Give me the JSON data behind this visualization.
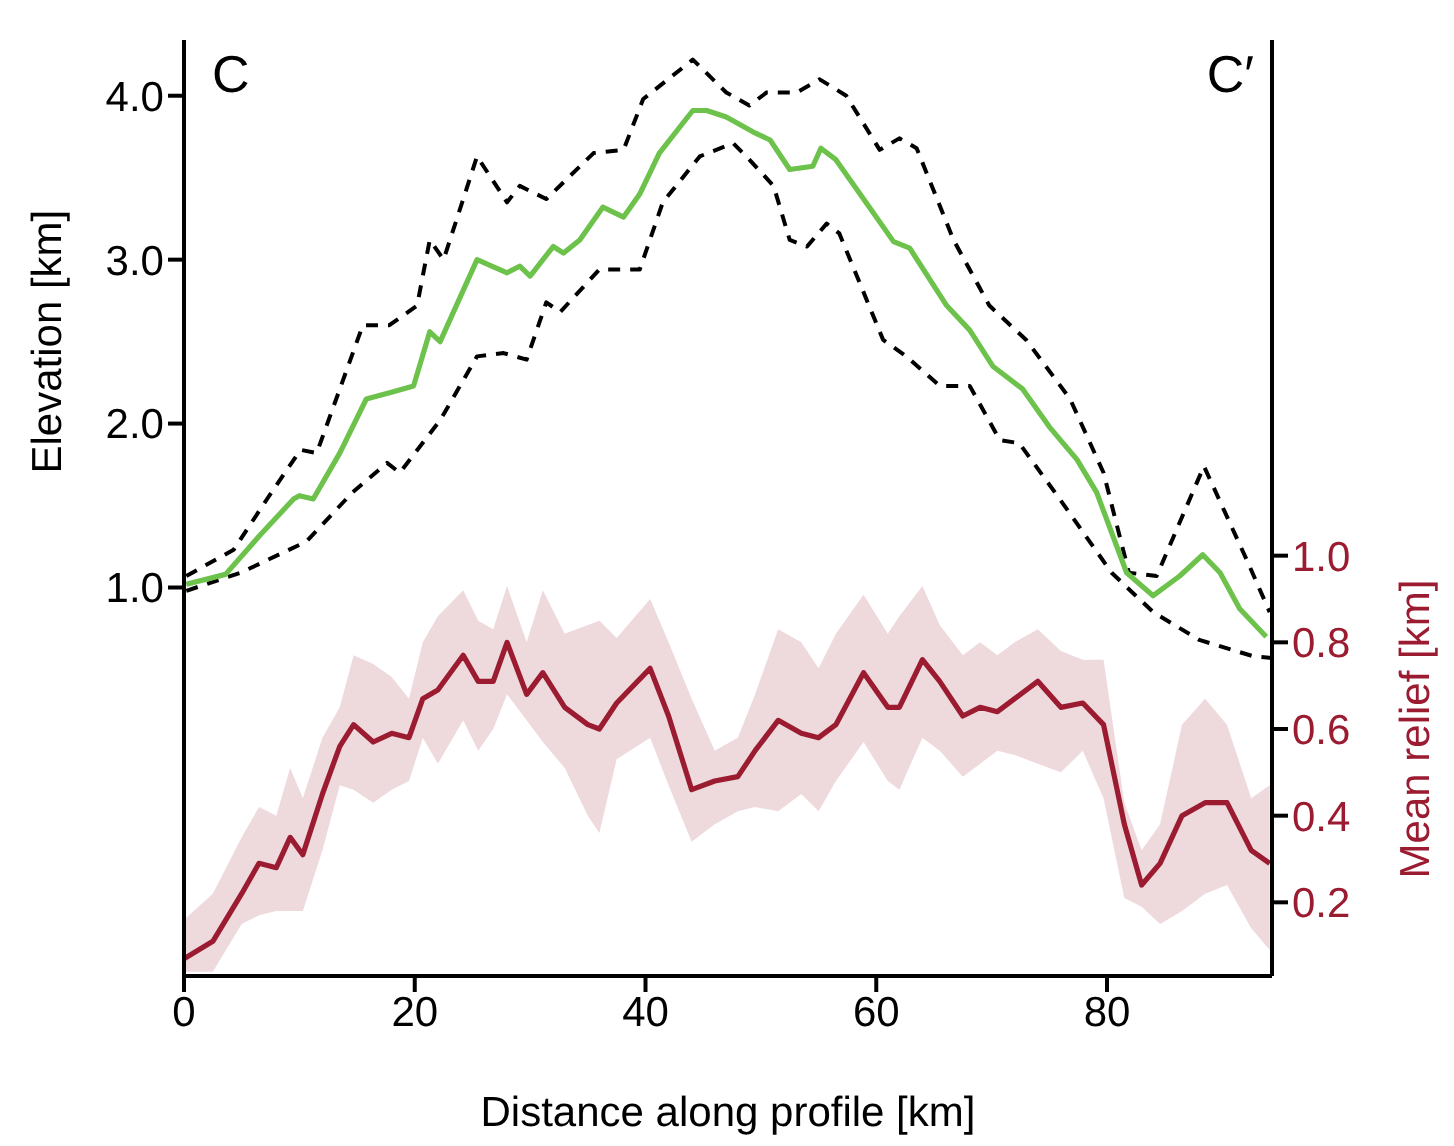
{
  "chart_data": {
    "type": "line",
    "xlabel": "Distance along profile [km]",
    "ylabel": "Elevation [km]",
    "y2label": "Mean relief [km]",
    "annotations": [
      "C",
      "C′"
    ],
    "xlim": [
      0,
      94.3
    ],
    "xticks": [
      0,
      20,
      40,
      60,
      80
    ],
    "ylim": [
      -1.37,
      4.34
    ],
    "yticks": [
      {
        "value": 1,
        "label": "1.0"
      },
      {
        "value": 2,
        "label": "2.0"
      },
      {
        "value": 3,
        "label": "3.0"
      },
      {
        "value": 4,
        "label": "4.0"
      }
    ],
    "y2lim": [
      0.03,
      2.19
    ],
    "y2ticks": [
      0.2,
      0.4,
      0.6,
      0.8,
      {
        "value": 1,
        "label": "1.0"
      }
    ],
    "series": [
      {
        "color": "#000000",
        "line_style": "dashed",
        "x": [
          0.2,
          4.3,
          7.2,
          10.1,
          11.5,
          15.5,
          17.8,
          20.2,
          21.3,
          22.5,
          25.4,
          28,
          29.1,
          31.4,
          35.5,
          38.1,
          39.8,
          44.1,
          47,
          49,
          50.5,
          53.1,
          55.1,
          57.4,
          60.3,
          62,
          63.5,
          66.7,
          69.8,
          73,
          76.8,
          79.7,
          81.9,
          84.3,
          88.4,
          92.1,
          94.1
        ],
        "values": [
          1.07,
          1.23,
          1.54,
          1.84,
          1.82,
          2.6,
          2.6,
          2.72,
          3.12,
          3.0,
          3.63,
          3.35,
          3.45,
          3.37,
          3.65,
          3.67,
          3.98,
          4.22,
          4.02,
          3.94,
          4.02,
          4.02,
          4.1,
          4.0,
          3.67,
          3.74,
          3.68,
          3.12,
          2.72,
          2.51,
          2.15,
          1.7,
          1.09,
          1.07,
          1.74,
          1.17,
          0.85
        ]
      },
      {
        "color": "#000000",
        "line_style": "dashed",
        "x": [
          0.2,
          4.9,
          10.6,
          14.6,
          17.6,
          18.7,
          22.2,
          25.4,
          27.7,
          29.7,
          31.4,
          32.6,
          36,
          39.5,
          41.5,
          44.7,
          47.6,
          49,
          51.1,
          52.5,
          54,
          55.7,
          56.8,
          60.6,
          62.6,
          65.5,
          68.1,
          70.7,
          72.4,
          75.9,
          80.4,
          84,
          88,
          92.7,
          94.3
        ],
        "values": [
          0.98,
          1.09,
          1.28,
          1.58,
          1.76,
          1.7,
          2.02,
          2.41,
          2.43,
          2.39,
          2.74,
          2.68,
          2.94,
          2.94,
          3.35,
          3.63,
          3.71,
          3.61,
          3.45,
          3.12,
          3.08,
          3.22,
          3.16,
          2.51,
          2.41,
          2.23,
          2.23,
          1.9,
          1.88,
          1.54,
          1.09,
          0.85,
          0.68,
          0.58,
          0.57
        ]
      },
      {
        "color": "#6cc24a",
        "line_style": "solid",
        "x": [
          0.2,
          3.6,
          6.6,
          9.5,
          10,
          11.2,
          13.5,
          15.8,
          17.9,
          19.9,
          21.3,
          22.2,
          25.4,
          28,
          29.1,
          30,
          32,
          32.9,
          34.3,
          36.3,
          38.1,
          39.5,
          41.2,
          44.1,
          45.3,
          47,
          49.3,
          50.8,
          52.5,
          54.5,
          55.2,
          56.5,
          58.9,
          61.5,
          62.9,
          66.1,
          68.1,
          70.1,
          72.7,
          75,
          77.4,
          79.1,
          81.7,
          84,
          86.3,
          88.3,
          89.8,
          91.5,
          93.8
        ],
        "values": [
          1.02,
          1.08,
          1.32,
          1.54,
          1.56,
          1.54,
          1.82,
          2.15,
          2.19,
          2.23,
          2.56,
          2.5,
          3.0,
          2.92,
          2.96,
          2.9,
          3.08,
          3.04,
          3.12,
          3.32,
          3.26,
          3.4,
          3.65,
          3.91,
          3.91,
          3.87,
          3.78,
          3.73,
          3.55,
          3.57,
          3.68,
          3.61,
          3.37,
          3.11,
          3.07,
          2.72,
          2.57,
          2.35,
          2.21,
          1.98,
          1.78,
          1.58,
          1.09,
          0.95,
          1.07,
          1.2,
          1.09,
          0.87,
          0.7
        ]
      },
      {
        "color": "#9b1b30",
        "line_style": "solid",
        "axis": "y2",
        "x": [
          0,
          2.5,
          5,
          6.5,
          8,
          9.2,
          10.3,
          12,
          13.5,
          14.7,
          16.4,
          18,
          19.5,
          20.7,
          22,
          24.2,
          25.5,
          26.8,
          28,
          29.7,
          31.1,
          33,
          35,
          36,
          37.5,
          40.4,
          42,
          44,
          46,
          48,
          49.5,
          51.5,
          53.5,
          55,
          56.5,
          58.9,
          61,
          62,
          64,
          65.5,
          67.5,
          69,
          70.5,
          72,
          74,
          76,
          77.9,
          79.7,
          81.5,
          83,
          84.6,
          86.5,
          88.5,
          90.4,
          92.5,
          94.1
        ],
        "values": [
          0.07,
          0.11,
          0.22,
          0.29,
          0.28,
          0.35,
          0.31,
          0.45,
          0.56,
          0.61,
          0.57,
          0.59,
          0.58,
          0.67,
          0.69,
          0.77,
          0.71,
          0.71,
          0.8,
          0.68,
          0.73,
          0.65,
          0.61,
          0.6,
          0.66,
          0.74,
          0.63,
          0.46,
          0.48,
          0.49,
          0.55,
          0.62,
          0.59,
          0.58,
          0.61,
          0.73,
          0.65,
          0.65,
          0.76,
          0.71,
          0.63,
          0.65,
          0.64,
          0.67,
          0.71,
          0.65,
          0.66,
          0.61,
          0.38,
          0.24,
          0.29,
          0.4,
          0.43,
          0.43,
          0.32,
          0.29
        ],
        "upper": [
          0.16,
          0.22,
          0.35,
          0.42,
          0.4,
          0.51,
          0.44,
          0.58,
          0.65,
          0.77,
          0.75,
          0.72,
          0.67,
          0.8,
          0.86,
          0.92,
          0.85,
          0.83,
          0.93,
          0.8,
          0.92,
          0.82,
          0.84,
          0.85,
          0.81,
          0.9,
          0.8,
          0.67,
          0.55,
          0.58,
          0.68,
          0.83,
          0.8,
          0.74,
          0.82,
          0.91,
          0.82,
          0.86,
          0.93,
          0.84,
          0.77,
          0.8,
          0.77,
          0.8,
          0.83,
          0.78,
          0.76,
          0.76,
          0.43,
          0.32,
          0.38,
          0.61,
          0.67,
          0.61,
          0.44,
          0.47
        ],
        "lower": [
          0.04,
          0.04,
          0.15,
          0.17,
          0.18,
          0.18,
          0.18,
          0.32,
          0.47,
          0.46,
          0.43,
          0.46,
          0.48,
          0.58,
          0.52,
          0.62,
          0.55,
          0.6,
          0.68,
          0.62,
          0.57,
          0.51,
          0.4,
          0.36,
          0.53,
          0.58,
          0.47,
          0.34,
          0.38,
          0.41,
          0.42,
          0.41,
          0.45,
          0.41,
          0.48,
          0.57,
          0.48,
          0.46,
          0.58,
          0.55,
          0.49,
          0.52,
          0.55,
          0.54,
          0.52,
          0.5,
          0.55,
          0.44,
          0.21,
          0.19,
          0.15,
          0.18,
          0.22,
          0.24,
          0.14,
          0.09
        ]
      }
    ]
  }
}
